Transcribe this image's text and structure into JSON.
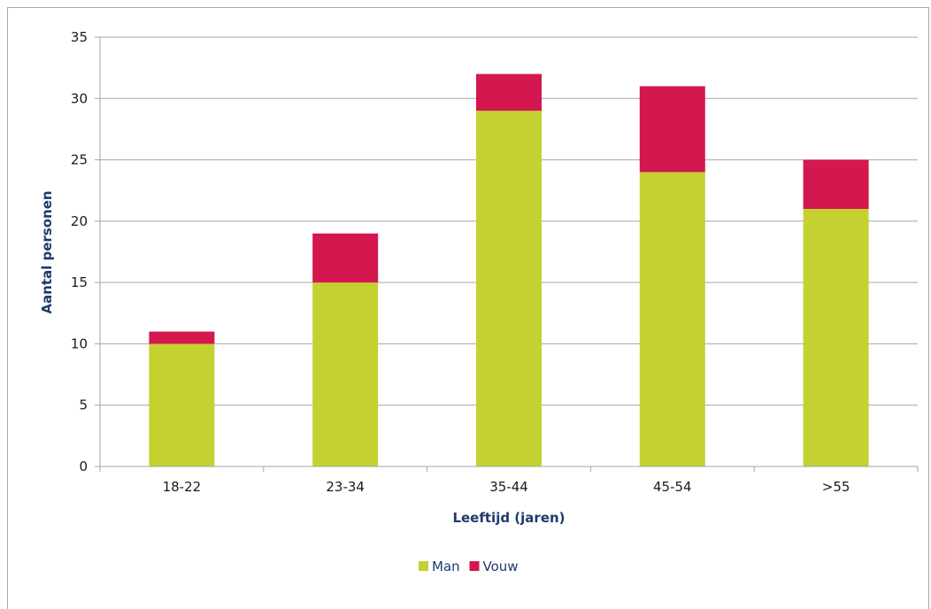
{
  "chart_data": {
    "type": "bar",
    "stacked": true,
    "categories": [
      "18-22",
      "23-34",
      "35-44",
      "45-54",
      ">55"
    ],
    "series": [
      {
        "name": "Man",
        "values": [
          10,
          15,
          29,
          24,
          21
        ],
        "color": "#c4d130"
      },
      {
        "name": "Vouw",
        "values": [
          1,
          4,
          3,
          7,
          4
        ],
        "color": "#d4174e"
      }
    ],
    "xlabel": "Leeftijd (jaren)",
    "ylabel": "Aantal personen",
    "ylim": [
      0,
      35
    ],
    "yticks": [
      "0",
      "5",
      "10",
      "15",
      "20",
      "25",
      "30",
      "35"
    ],
    "grid": true,
    "legend_position": "bottom"
  }
}
